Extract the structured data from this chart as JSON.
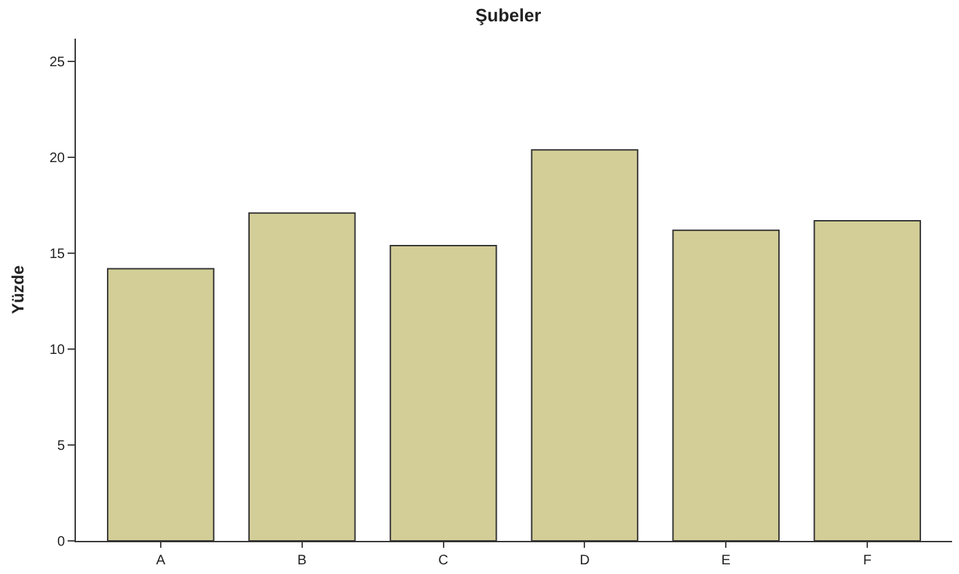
{
  "chart_data": {
    "type": "bar",
    "title": "Şubeler",
    "ylabel": "Yüzde",
    "categories": [
      "A",
      "B",
      "C",
      "D",
      "E",
      "F"
    ],
    "values": [
      14.2,
      17.1,
      15.4,
      20.4,
      16.2,
      16.7
    ],
    "color": "#d3ce97",
    "ylim": [
      0,
      26.2
    ],
    "yticks": [
      0,
      5,
      10,
      15,
      20,
      25
    ]
  }
}
